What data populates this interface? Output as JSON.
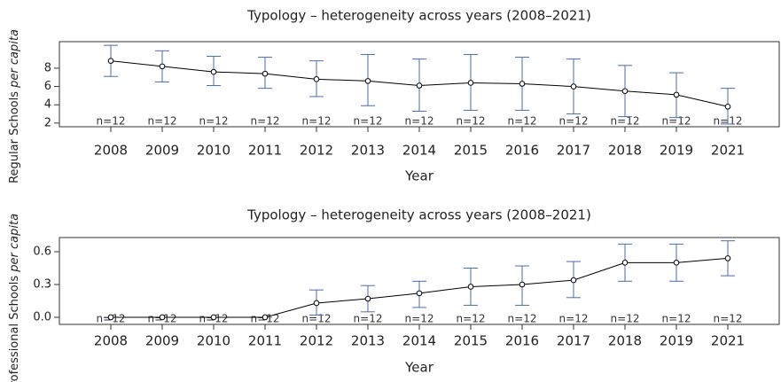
{
  "chart_data": [
    {
      "type": "line",
      "title": "Typology – heterogeneity across years (2008–2021)",
      "xlabel": "Year",
      "ylabel": [
        "Regular Schools ",
        "per capita"
      ],
      "categories": [
        "2008",
        "2009",
        "2010",
        "2011",
        "2012",
        "2013",
        "2014",
        "2015",
        "2016",
        "2017",
        "2018",
        "2019",
        "2021"
      ],
      "values": [
        8.8,
        8.2,
        7.6,
        7.4,
        6.8,
        6.6,
        6.1,
        6.4,
        6.3,
        6.0,
        5.5,
        5.1,
        3.8
      ],
      "upper": [
        10.5,
        9.9,
        9.3,
        9.2,
        8.8,
        9.5,
        9.0,
        9.5,
        9.2,
        9.0,
        8.3,
        7.5,
        5.8
      ],
      "lower": [
        7.1,
        6.5,
        6.1,
        5.8,
        4.9,
        3.9,
        3.3,
        3.4,
        3.4,
        3.0,
        2.7,
        2.6,
        1.9
      ],
      "n_labels": [
        "n=12",
        "n=12",
        "n=12",
        "n=12",
        "n=12",
        "n=12",
        "n=12",
        "n=12",
        "n=12",
        "n=12",
        "n=12",
        "n=12",
        "n=12"
      ],
      "color": "#000000",
      "error_color": "#4a6bb0",
      "ylim": [
        1.6,
        10.9
      ],
      "yticks": [
        2,
        4,
        6,
        8
      ]
    },
    {
      "type": "line",
      "title": "Typology – heterogeneity across years (2008–2021)",
      "xlabel": "Year",
      "ylabel": [
        "Professional Schools ",
        "per capita"
      ],
      "categories": [
        "2008",
        "2009",
        "2010",
        "2011",
        "2012",
        "2013",
        "2014",
        "2015",
        "2016",
        "2017",
        "2018",
        "2019",
        "2021"
      ],
      "values": [
        0,
        0,
        0,
        0,
        0.13,
        0.17,
        0.22,
        0.28,
        0.3,
        0.34,
        0.5,
        0.5,
        0.54
      ],
      "upper": [
        0,
        0,
        0,
        0,
        0.25,
        0.29,
        0.33,
        0.45,
        0.47,
        0.51,
        0.67,
        0.67,
        0.7
      ],
      "lower": [
        0,
        0,
        0,
        0,
        0.02,
        0.05,
        0.09,
        0.11,
        0.11,
        0.18,
        0.33,
        0.33,
        0.38
      ],
      "n_labels": [
        "n=12",
        "n=12",
        "n=12",
        "n=12",
        "n=12",
        "n=12",
        "n=12",
        "n=12",
        "n=12",
        "n=12",
        "n=12",
        "n=12",
        "n=12"
      ],
      "color": "#000000",
      "error_color": "#4a6bb0",
      "ylim": [
        -0.065,
        0.73
      ],
      "yticks": [
        {
          "value": 0,
          "label": "0.0"
        },
        {
          "value": 0.3,
          "label": "0.3"
        },
        {
          "value": 0.6,
          "label": "0.6"
        }
      ]
    }
  ]
}
